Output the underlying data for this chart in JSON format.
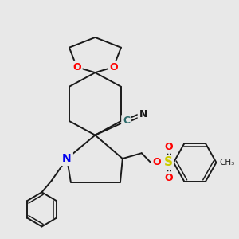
{
  "background_color": "#e8e8e8",
  "fig_size": [
    3.0,
    3.0
  ],
  "dpi": 100,
  "bond_color": "#1a1a1a",
  "bond_lw": 1.4,
  "colors": {
    "O": "#ff0000",
    "N": "#0000ee",
    "S": "#cccc00",
    "C": "#2d6b6b"
  }
}
